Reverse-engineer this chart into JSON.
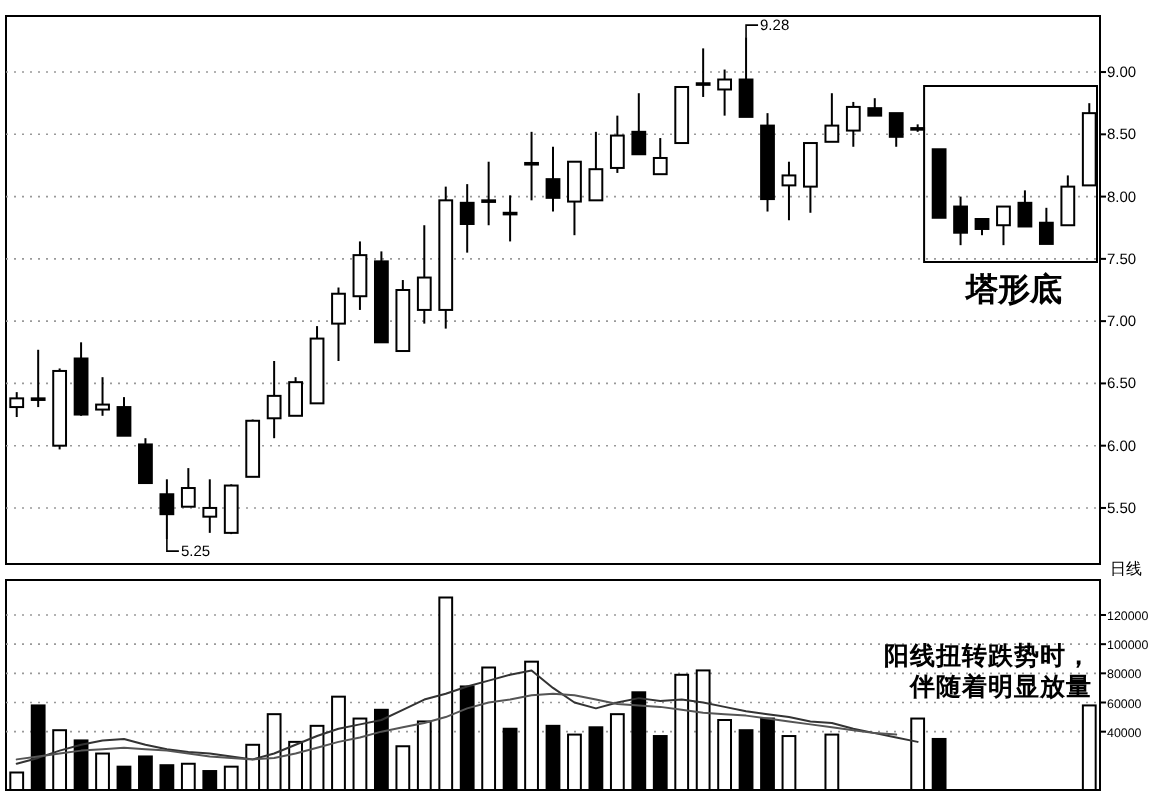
{
  "chart_data": [
    {
      "type": "candlestick",
      "categories": [
        null,
        null,
        null,
        null,
        null,
        null,
        null,
        null,
        null,
        null,
        null,
        null,
        null,
        null,
        null,
        null,
        null,
        null,
        null,
        null,
        null,
        null,
        null,
        null,
        null,
        null,
        null,
        null,
        null,
        null,
        null,
        null,
        null,
        null,
        null,
        null,
        null,
        null,
        null,
        null,
        null,
        null,
        null,
        null,
        null,
        null,
        null,
        null,
        null,
        null,
        null
      ],
      "ohlc": [
        [
          6.31,
          6.43,
          6.23,
          6.38
        ],
        [
          6.38,
          6.77,
          6.31,
          6.38
        ],
        [
          6.0,
          6.62,
          5.97,
          6.6
        ],
        [
          6.7,
          6.83,
          6.24,
          6.25
        ],
        [
          6.29,
          6.55,
          6.24,
          6.33
        ],
        [
          6.31,
          6.39,
          6.08,
          6.08
        ],
        [
          6.01,
          6.06,
          5.7,
          5.7
        ],
        [
          5.61,
          5.73,
          5.25,
          5.45
        ],
        [
          5.51,
          5.82,
          5.51,
          5.66
        ],
        [
          5.43,
          5.73,
          5.3,
          5.5
        ],
        [
          5.3,
          5.69,
          5.29,
          5.68
        ],
        [
          5.75,
          6.21,
          5.75,
          6.2
        ],
        [
          6.22,
          6.68,
          6.06,
          6.4
        ],
        [
          6.24,
          6.55,
          6.24,
          6.51
        ],
        [
          6.34,
          6.96,
          6.34,
          6.86
        ],
        [
          6.98,
          7.27,
          6.68,
          7.22
        ],
        [
          7.2,
          7.64,
          7.09,
          7.53
        ],
        [
          7.48,
          7.56,
          6.83,
          6.83
        ],
        [
          6.76,
          7.33,
          6.76,
          7.25
        ],
        [
          7.09,
          7.77,
          6.98,
          7.35
        ],
        [
          7.09,
          8.08,
          6.94,
          7.97
        ],
        [
          7.95,
          8.1,
          7.55,
          7.78
        ],
        [
          7.97,
          8.28,
          7.77,
          7.97
        ],
        [
          7.87,
          8.01,
          7.64,
          7.87
        ],
        [
          8.27,
          8.52,
          7.97,
          8.27
        ],
        [
          8.14,
          8.4,
          7.88,
          7.99
        ],
        [
          7.96,
          8.28,
          7.69,
          8.28
        ],
        [
          7.97,
          8.52,
          7.97,
          8.22
        ],
        [
          8.23,
          8.65,
          8.19,
          8.49
        ],
        [
          8.52,
          8.83,
          8.34,
          8.34
        ],
        [
          8.18,
          8.47,
          8.18,
          8.31
        ],
        [
          8.43,
          8.88,
          8.43,
          8.88
        ],
        [
          8.91,
          9.19,
          8.8,
          8.91
        ],
        [
          8.86,
          9.02,
          8.65,
          8.94
        ],
        [
          8.94,
          9.28,
          8.64,
          8.64
        ],
        [
          8.57,
          8.67,
          7.88,
          7.98
        ],
        [
          8.09,
          8.28,
          7.81,
          8.17
        ],
        [
          8.08,
          8.43,
          7.87,
          8.43
        ],
        [
          8.44,
          8.83,
          8.44,
          8.57
        ],
        [
          8.53,
          8.76,
          8.4,
          8.72
        ],
        [
          8.71,
          8.79,
          8.65,
          8.65
        ],
        [
          8.67,
          8.67,
          8.4,
          8.48
        ],
        [
          8.55,
          8.58,
          8.52,
          8.55
        ],
        [
          8.38,
          8.38,
          7.83,
          7.83
        ],
        [
          7.92,
          8.0,
          7.61,
          7.71
        ],
        [
          7.82,
          7.82,
          7.69,
          7.74
        ],
        [
          7.77,
          7.92,
          7.61,
          7.92
        ],
        [
          7.95,
          8.05,
          7.76,
          7.76
        ],
        [
          7.79,
          7.91,
          7.62,
          7.62
        ],
        [
          7.77,
          8.17,
          7.77,
          8.08
        ],
        [
          8.09,
          8.75,
          8.09,
          8.67
        ]
      ],
      "ylim": [
        5.05,
        9.45
      ],
      "yticks": [
        {
          "value": 5.5,
          "label": "5.50"
        },
        {
          "value": 6,
          "label": "6.00"
        },
        {
          "value": 6.5,
          "label": "6.50"
        },
        {
          "value": 7,
          "label": "7.00"
        },
        {
          "value": 7.5,
          "label": "7.50"
        },
        {
          "value": 8,
          "label": "8.00"
        },
        {
          "value": 8.5,
          "label": "8.50"
        },
        {
          "value": 9,
          "label": "9.00"
        }
      ],
      "grid": "y",
      "annotations": [
        "9.28",
        "5.25",
        "塔形底"
      ]
    },
    {
      "type": "bar",
      "categories": [
        null,
        null,
        null,
        null,
        null,
        null,
        null,
        null,
        null,
        null,
        null,
        null,
        null,
        null,
        null,
        null,
        null,
        null,
        null,
        null,
        null,
        null,
        null,
        null,
        null,
        null,
        null,
        null,
        null,
        null,
        null,
        null,
        null,
        null,
        null,
        null,
        null,
        null,
        null,
        null,
        null,
        null,
        null,
        null,
        null,
        null,
        null,
        null,
        null,
        null,
        null
      ],
      "series": [
        {
          "values": [
            12000,
            58000,
            41000,
            34000,
            25000,
            16000,
            23000,
            17000,
            18000,
            13000,
            16000,
            31000,
            52000,
            33000,
            44000,
            64000,
            49000,
            55000,
            30000,
            47000,
            132000,
            71000,
            84000,
            42000,
            88000,
            44000,
            38000,
            43000,
            52000,
            67000,
            37000,
            79000,
            82000,
            48000,
            41000,
            49000,
            37000,
            null,
            38000,
            null,
            null,
            null,
            49000,
            35000,
            null,
            null,
            null,
            null,
            null,
            null,
            58000
          ],
          "colors": [
            "#ffffff",
            "#000000",
            "#ffffff",
            "#000000",
            "#ffffff",
            "#000000",
            "#000000",
            "#000000",
            "#ffffff",
            "#000000",
            "#ffffff",
            "#ffffff",
            "#ffffff",
            "#ffffff",
            "#ffffff",
            "#ffffff",
            "#ffffff",
            "#000000",
            "#ffffff",
            "#ffffff",
            "#ffffff",
            "#000000",
            "#ffffff",
            "#000000",
            "#ffffff",
            "#000000",
            "#ffffff",
            "#000000",
            "#ffffff",
            "#000000",
            "#000000",
            "#ffffff",
            "#ffffff",
            "#ffffff",
            "#000000",
            "#000000",
            "#ffffff",
            "#ffffff",
            "#ffffff",
            "#ffffff",
            "#ffffff",
            "#ffffff",
            "#ffffff",
            "#000000",
            "#ffffff",
            "#ffffff",
            "#ffffff",
            "#ffffff",
            "#ffffff",
            "#ffffff",
            "#ffffff"
          ]
        },
        {
          "type": "line",
          "color": "#333333",
          "values": [
            18000,
            22000,
            27000,
            31000,
            34000,
            35000,
            31000,
            28000,
            26000,
            25000,
            23000,
            21000,
            25000,
            31000,
            37000,
            42000,
            45000,
            48000,
            55000,
            62000,
            66000,
            71000,
            75000,
            79000,
            82000,
            70000,
            60000,
            56000,
            60000,
            63000,
            61000,
            62000,
            60000,
            57000,
            54000,
            52000,
            50000,
            47000,
            46000,
            42000,
            39000,
            36000,
            33000,
            null,
            null,
            null,
            null,
            null,
            null,
            null,
            null
          ]
        },
        {
          "type": "line",
          "color": "#555555",
          "values": [
            21000,
            23000,
            25000,
            27000,
            28000,
            29000,
            28000,
            27000,
            25000,
            23000,
            22000,
            21000,
            22000,
            25000,
            29000,
            33000,
            36000,
            40000,
            43000,
            46000,
            50000,
            56000,
            60000,
            62000,
            65000,
            66000,
            65000,
            62000,
            59000,
            58000,
            57000,
            55000,
            53000,
            52000,
            51000,
            49000,
            47000,
            45000,
            43000,
            41000,
            39000,
            38000,
            null,
            null,
            null,
            null,
            null,
            null,
            null,
            null,
            null
          ]
        }
      ],
      "ylim": [
        0,
        144000
      ],
      "yticks": [
        40000,
        60000,
        80000,
        100000,
        120000
      ],
      "grid": "y",
      "annotations": [
        "阳线扭转跌势时，伴随着明显放量",
        "日线"
      ]
    }
  ]
}
